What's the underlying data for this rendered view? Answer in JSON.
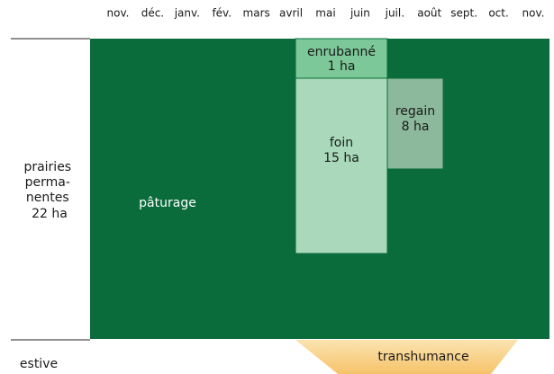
{
  "months": [
    "nov.",
    "déc.",
    "janv.",
    "fév.",
    "mars",
    "avril",
    "mai",
    "juin",
    "juil.",
    "août",
    "sept.",
    "oct.",
    "nov."
  ],
  "rows": {
    "prairies": [
      "prairies",
      "perma-",
      "nentes",
      "22 ha"
    ],
    "estive": "estive"
  },
  "blocks": {
    "paturage": "pâturage",
    "enrubanne": [
      "enrubanné",
      "1 ha"
    ],
    "foin": [
      "foin",
      "15 ha"
    ],
    "regain": [
      "regain",
      "8 ha"
    ],
    "transhumance": "transhumance"
  }
}
